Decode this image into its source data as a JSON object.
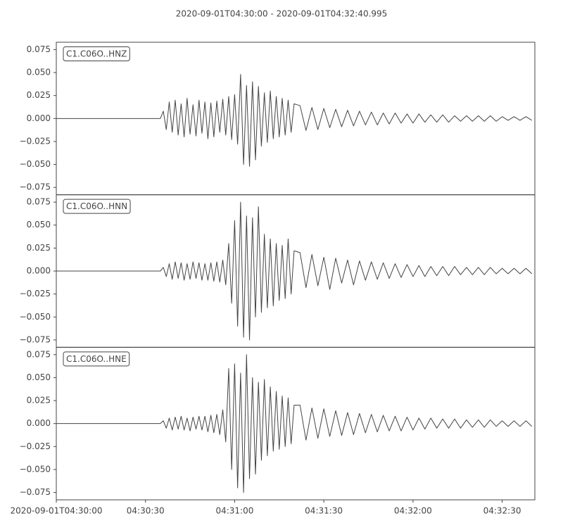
{
  "chart_data": {
    "type": "line",
    "title": "2020-09-01T04:30:00  -  2020-09-01T04:32:40.995",
    "x": [
      0,
      35,
      36,
      37,
      38,
      39,
      40,
      41,
      42,
      43,
      44,
      45,
      46,
      47,
      48,
      49,
      50,
      51,
      52,
      53,
      54,
      55,
      56,
      57,
      58,
      59,
      60,
      61,
      62,
      63,
      64,
      65,
      66,
      67,
      68,
      69,
      70,
      71,
      72,
      73,
      74,
      75,
      76,
      77,
      78,
      79,
      80,
      82,
      84,
      86,
      88,
      90,
      92,
      94,
      96,
      98,
      100,
      102,
      104,
      106,
      108,
      110,
      112,
      114,
      116,
      118,
      120,
      122,
      124,
      126,
      128,
      130,
      132,
      134,
      136,
      138,
      140,
      142,
      144,
      146,
      148,
      150,
      152,
      154,
      156,
      158,
      160
    ],
    "series": [
      {
        "name": "C1.C06O..HNZ",
        "color": "#444444",
        "values": [
          0,
          0,
          0.008,
          -0.012,
          0.018,
          -0.015,
          0.02,
          -0.018,
          0.016,
          -0.02,
          0.022,
          -0.017,
          0.015,
          -0.019,
          0.02,
          -0.016,
          0.018,
          -0.022,
          0.017,
          -0.02,
          0.019,
          -0.015,
          0.021,
          -0.018,
          0.024,
          -0.023,
          0.026,
          -0.028,
          0.048,
          -0.05,
          0.036,
          -0.052,
          0.04,
          -0.045,
          0.035,
          -0.03,
          0.028,
          -0.026,
          0.03,
          -0.022,
          0.024,
          -0.02,
          0.022,
          -0.018,
          0.02,
          -0.015,
          0.016,
          0.014,
          -0.013,
          0.012,
          -0.012,
          0.011,
          -0.01,
          0.01,
          -0.009,
          0.009,
          -0.008,
          0.008,
          -0.007,
          0.007,
          -0.007,
          0.006,
          -0.006,
          0.006,
          -0.005,
          0.005,
          -0.005,
          0.005,
          -0.004,
          0.004,
          -0.004,
          0.004,
          -0.004,
          0.003,
          -0.003,
          0.003,
          -0.003,
          0.003,
          -0.003,
          0.003,
          -0.003,
          0.002,
          -0.002,
          0.002,
          -0.002,
          0.002,
          -0.002
        ]
      },
      {
        "name": "C1.C06O..HNN",
        "color": "#444444",
        "values": [
          0,
          0,
          0.004,
          -0.006,
          0.008,
          -0.009,
          0.01,
          -0.008,
          0.009,
          -0.01,
          0.008,
          -0.009,
          0.01,
          -0.008,
          0.009,
          -0.01,
          0.008,
          -0.01,
          0.009,
          -0.011,
          0.01,
          -0.012,
          0.012,
          -0.015,
          0.03,
          -0.035,
          0.055,
          -0.06,
          0.075,
          -0.072,
          0.06,
          -0.075,
          0.058,
          -0.05,
          0.07,
          -0.045,
          0.04,
          -0.04,
          0.035,
          -0.038,
          0.03,
          -0.032,
          0.028,
          -0.03,
          0.035,
          -0.025,
          0.022,
          0.02,
          -0.018,
          0.018,
          -0.016,
          0.015,
          -0.02,
          0.014,
          -0.013,
          0.012,
          -0.015,
          0.011,
          -0.01,
          0.01,
          -0.009,
          0.009,
          -0.008,
          0.008,
          -0.007,
          0.007,
          -0.006,
          0.006,
          -0.006,
          0.005,
          -0.005,
          0.005,
          -0.005,
          0.005,
          -0.004,
          0.004,
          -0.004,
          0.004,
          -0.004,
          0.004,
          -0.003,
          0.003,
          -0.003,
          0.003,
          -0.003,
          0.003,
          -0.003
        ]
      },
      {
        "name": "C1.C06O..HNE",
        "color": "#444444",
        "values": [
          0,
          0,
          0.003,
          -0.005,
          0.006,
          -0.007,
          0.007,
          -0.006,
          0.008,
          -0.007,
          0.006,
          -0.008,
          0.007,
          -0.006,
          0.008,
          -0.007,
          0.008,
          -0.009,
          0.009,
          -0.01,
          0.01,
          -0.012,
          0.015,
          -0.02,
          0.06,
          -0.05,
          0.065,
          -0.07,
          0.055,
          -0.075,
          0.075,
          -0.06,
          0.05,
          -0.055,
          0.045,
          -0.04,
          0.048,
          -0.035,
          0.04,
          -0.03,
          0.035,
          -0.028,
          0.03,
          -0.025,
          0.028,
          -0.022,
          0.02,
          0.02,
          -0.018,
          0.017,
          -0.016,
          0.016,
          -0.014,
          0.014,
          -0.013,
          0.012,
          -0.012,
          0.011,
          -0.01,
          0.01,
          -0.009,
          0.009,
          -0.008,
          0.008,
          -0.008,
          0.007,
          -0.007,
          0.006,
          -0.006,
          0.006,
          -0.005,
          0.005,
          -0.005,
          0.005,
          -0.005,
          0.004,
          -0.004,
          0.004,
          -0.004,
          0.004,
          -0.003,
          0.003,
          -0.003,
          0.003,
          -0.003,
          0.003,
          -0.003
        ]
      }
    ],
    "xlim": [
      0,
      160.995
    ],
    "ylim": [
      -0.083,
      0.083
    ],
    "yticks": [
      {
        "value": -0.075,
        "label": "−0.075"
      },
      {
        "value": -0.05,
        "label": "−0.050"
      },
      {
        "value": -0.025,
        "label": "−0.025"
      },
      {
        "value": 0,
        "label": "0.000"
      },
      0.025,
      {
        "value": 0.05,
        "label": "0.050"
      },
      0.075
    ],
    "xticks": [
      {
        "value": 0,
        "label": "2020-09-01T04:30:00"
      },
      {
        "value": 30,
        "label": "04:30:30"
      },
      {
        "value": 60,
        "label": "04:31:00"
      },
      {
        "value": 90,
        "label": "04:31:30"
      },
      {
        "value": 120,
        "label": "04:32:00"
      },
      {
        "value": 150,
        "label": "04:32:30"
      }
    ]
  }
}
